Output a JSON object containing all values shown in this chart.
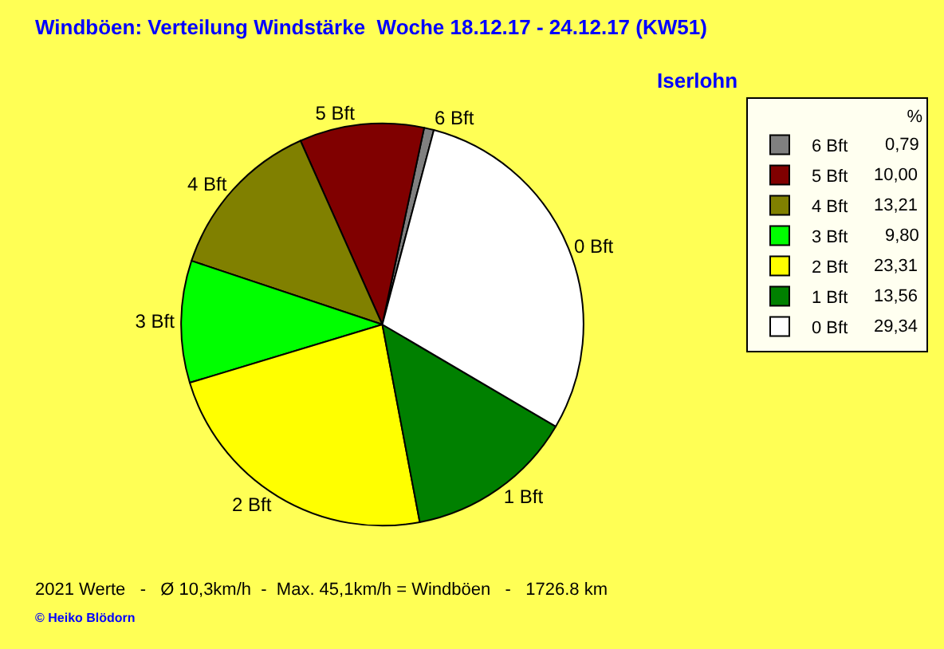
{
  "chart_data": {
    "type": "pie",
    "title": "Windböen: Verteilung Windstärke  Woche 18.12.17 - 24.12.17 (KW51)",
    "subtitle": "Iserlohn",
    "legend_title": "%",
    "categories": [
      "6 Bft",
      "5 Bft",
      "4 Bft",
      "3 Bft",
      "2 Bft",
      "1 Bft",
      "0 Bft"
    ],
    "values": [
      0.79,
      10.0,
      13.21,
      9.8,
      23.31,
      13.56,
      29.34
    ],
    "value_labels": [
      "0,79",
      "10,00",
      "13,21",
      "9,80",
      "23,31",
      "13,56",
      "29,34"
    ],
    "colors": [
      "#808080",
      "#800000",
      "#808000",
      "#00ff00",
      "#ffff00",
      "#008000",
      "#ffffff"
    ],
    "legend": "top right",
    "annotations": [
      "2021 Werte   -   Ø 10,3km/h  -  Max. 45,1km/h = Windböen   -   1726.8 km",
      "© Heiko Blödorn"
    ]
  }
}
